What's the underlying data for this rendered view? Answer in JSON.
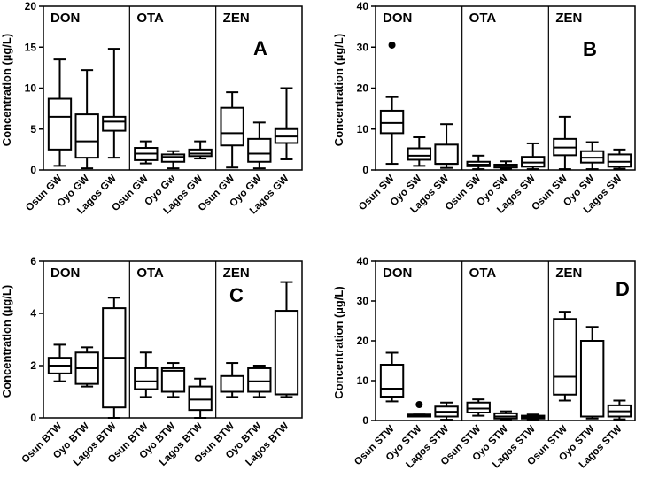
{
  "chart_data": [
    {
      "type": "boxplot",
      "panel_label": "A",
      "ylabel": "Concentration (µg/L)",
      "ylim": [
        0,
        20
      ],
      "yticks": [
        0,
        5,
        10,
        15,
        20
      ],
      "groups": [
        {
          "name": "DON",
          "categories": [
            "Osun GW",
            "Oyo GW",
            "Lagos GW"
          ],
          "boxes": [
            {
              "min": 0.5,
              "q1": 2.5,
              "median": 6.5,
              "q3": 8.7,
              "max": 13.5
            },
            {
              "min": 0.2,
              "q1": 1.5,
              "median": 3.5,
              "q3": 6.8,
              "max": 12.2
            },
            {
              "min": 1.5,
              "q1": 4.8,
              "median": 5.9,
              "q3": 6.5,
              "max": 14.8
            }
          ]
        },
        {
          "name": "OTA",
          "categories": [
            "Osun GW",
            "Oyo Gw",
            "Lagos GW"
          ],
          "boxes": [
            {
              "min": 0.8,
              "q1": 1.2,
              "median": 2.0,
              "q3": 2.7,
              "max": 3.5
            },
            {
              "min": 0.2,
              "q1": 1.0,
              "median": 1.6,
              "q3": 1.9,
              "max": 2.3
            },
            {
              "min": 1.4,
              "q1": 1.7,
              "median": 2.0,
              "q3": 2.5,
              "max": 3.5
            }
          ]
        },
        {
          "name": "ZEN",
          "categories": [
            "Osun GW",
            "Oyo GW",
            "Lagos GW"
          ],
          "boxes": [
            {
              "min": 0.3,
              "q1": 3.0,
              "median": 4.5,
              "q3": 7.6,
              "max": 9.5
            },
            {
              "min": 0.2,
              "q1": 1.0,
              "median": 2.0,
              "q3": 3.8,
              "max": 5.8
            },
            {
              "min": 1.3,
              "q1": 3.3,
              "median": 4.1,
              "q3": 5.0,
              "max": 10.0
            }
          ]
        }
      ]
    },
    {
      "type": "boxplot",
      "panel_label": "B",
      "ylabel": "Concentration (µg/L)",
      "ylim": [
        0,
        40
      ],
      "yticks": [
        0,
        10,
        20,
        30,
        40
      ],
      "groups": [
        {
          "name": "DON",
          "categories": [
            "Osun SW",
            "Oyo SW",
            "Lagos SW"
          ],
          "boxes": [
            {
              "min": 1.5,
              "q1": 9.0,
              "median": 11.5,
              "q3": 14.5,
              "max": 17.8,
              "outliers": [
                30.5
              ]
            },
            {
              "min": 1.0,
              "q1": 2.5,
              "median": 3.5,
              "q3": 5.3,
              "max": 8.0
            },
            {
              "min": 0.5,
              "q1": 1.5,
              "median": 1.5,
              "q3": 6.2,
              "max": 11.2
            }
          ]
        },
        {
          "name": "OTA",
          "categories": [
            "Osun SW",
            "Oyo SW",
            "Lagos SW"
          ],
          "boxes": [
            {
              "min": 0.2,
              "q1": 0.9,
              "median": 1.3,
              "q3": 2.0,
              "max": 3.5
            },
            {
              "min": 0.3,
              "q1": 0.6,
              "median": 1.0,
              "q3": 1.3,
              "max": 2.1
            },
            {
              "min": 0.2,
              "q1": 0.8,
              "median": 1.8,
              "q3": 3.2,
              "max": 6.5
            }
          ]
        },
        {
          "name": "ZEN",
          "categories": [
            "Osun SW",
            "Oyo SW",
            "Lagos SW"
          ],
          "boxes": [
            {
              "min": 0.2,
              "q1": 3.6,
              "median": 5.5,
              "q3": 7.6,
              "max": 13.0
            },
            {
              "min": 0.2,
              "q1": 1.8,
              "median": 3.0,
              "q3": 4.6,
              "max": 6.8
            },
            {
              "min": 0.3,
              "q1": 0.8,
              "median": 2.0,
              "q3": 3.8,
              "max": 5.0
            }
          ]
        }
      ]
    },
    {
      "type": "boxplot",
      "panel_label": "C",
      "ylabel": "Concentration (µg/L)",
      "ylim": [
        0,
        6
      ],
      "yticks": [
        0,
        2,
        4,
        6
      ],
      "groups": [
        {
          "name": "DON",
          "categories": [
            "Osun BTW",
            "Oyo BTW",
            "Lagos BTW"
          ],
          "boxes": [
            {
              "min": 1.4,
              "q1": 1.7,
              "median": 2.0,
              "q3": 2.3,
              "max": 2.8
            },
            {
              "min": 1.2,
              "q1": 1.3,
              "median": 1.9,
              "q3": 2.5,
              "max": 2.7
            },
            {
              "min": 0.0,
              "q1": 0.4,
              "median": 2.3,
              "q3": 4.2,
              "max": 4.6
            }
          ]
        },
        {
          "name": "OTA",
          "categories": [
            "Osun BTW",
            "Oyo BTW",
            "Lagos BTW"
          ],
          "boxes": [
            {
              "min": 0.8,
              "q1": 1.1,
              "median": 1.4,
              "q3": 1.9,
              "max": 2.5
            },
            {
              "min": 0.8,
              "q1": 1.0,
              "median": 1.8,
              "q3": 1.9,
              "max": 2.1
            },
            {
              "min": 0.0,
              "q1": 0.3,
              "median": 0.7,
              "q3": 1.2,
              "max": 1.5
            }
          ]
        },
        {
          "name": "ZEN",
          "categories": [
            "Osun BTW",
            "Oyo BTW",
            "Lagos BTW"
          ],
          "boxes": [
            {
              "min": 0.8,
              "q1": 1.0,
              "median": 1.0,
              "q3": 1.6,
              "max": 2.1
            },
            {
              "min": 0.8,
              "q1": 1.0,
              "median": 1.4,
              "q3": 1.9,
              "max": 2.0
            },
            {
              "min": 0.8,
              "q1": 0.9,
              "median": 0.9,
              "q3": 4.1,
              "max": 5.2
            }
          ]
        }
      ]
    },
    {
      "type": "boxplot",
      "panel_label": "D",
      "ylabel": "Concentration (µg/L)",
      "ylim": [
        0,
        40
      ],
      "yticks": [
        0,
        10,
        20,
        30,
        40
      ],
      "groups": [
        {
          "name": "DON",
          "categories": [
            "Osun STW",
            "Oyo STW",
            "Lagos STW"
          ],
          "boxes": [
            {
              "min": 4.8,
              "q1": 6.0,
              "median": 8.0,
              "q3": 14.0,
              "max": 17.0
            },
            {
              "min": 1.0,
              "q1": 1.0,
              "median": 1.2,
              "q3": 1.5,
              "max": 1.5,
              "outliers": [
                4.0
              ]
            },
            {
              "min": 0.2,
              "q1": 1.0,
              "median": 2.2,
              "q3": 3.5,
              "max": 4.5
            }
          ]
        },
        {
          "name": "OTA",
          "categories": [
            "Osun STW",
            "Oyo STW",
            "Lagos STW"
          ],
          "boxes": [
            {
              "min": 1.2,
              "q1": 2.0,
              "median": 3.0,
              "q3": 4.5,
              "max": 5.3
            },
            {
              "min": 0.2,
              "q1": 0.5,
              "median": 1.0,
              "q3": 1.8,
              "max": 2.3
            },
            {
              "min": 0.2,
              "q1": 0.5,
              "median": 0.8,
              "q3": 1.2,
              "max": 1.5
            }
          ]
        },
        {
          "name": "ZEN",
          "categories": [
            "Osun STW",
            "Oyo STW",
            "Lagos STW"
          ],
          "boxes": [
            {
              "min": 5.0,
              "q1": 6.5,
              "median": 11.0,
              "q3": 25.5,
              "max": 27.3
            },
            {
              "min": 0.5,
              "q1": 1.0,
              "median": 1.0,
              "q3": 20.0,
              "max": 23.5
            },
            {
              "min": 0.3,
              "q1": 1.0,
              "median": 2.3,
              "q3": 3.8,
              "max": 5.0
            }
          ]
        }
      ]
    }
  ]
}
